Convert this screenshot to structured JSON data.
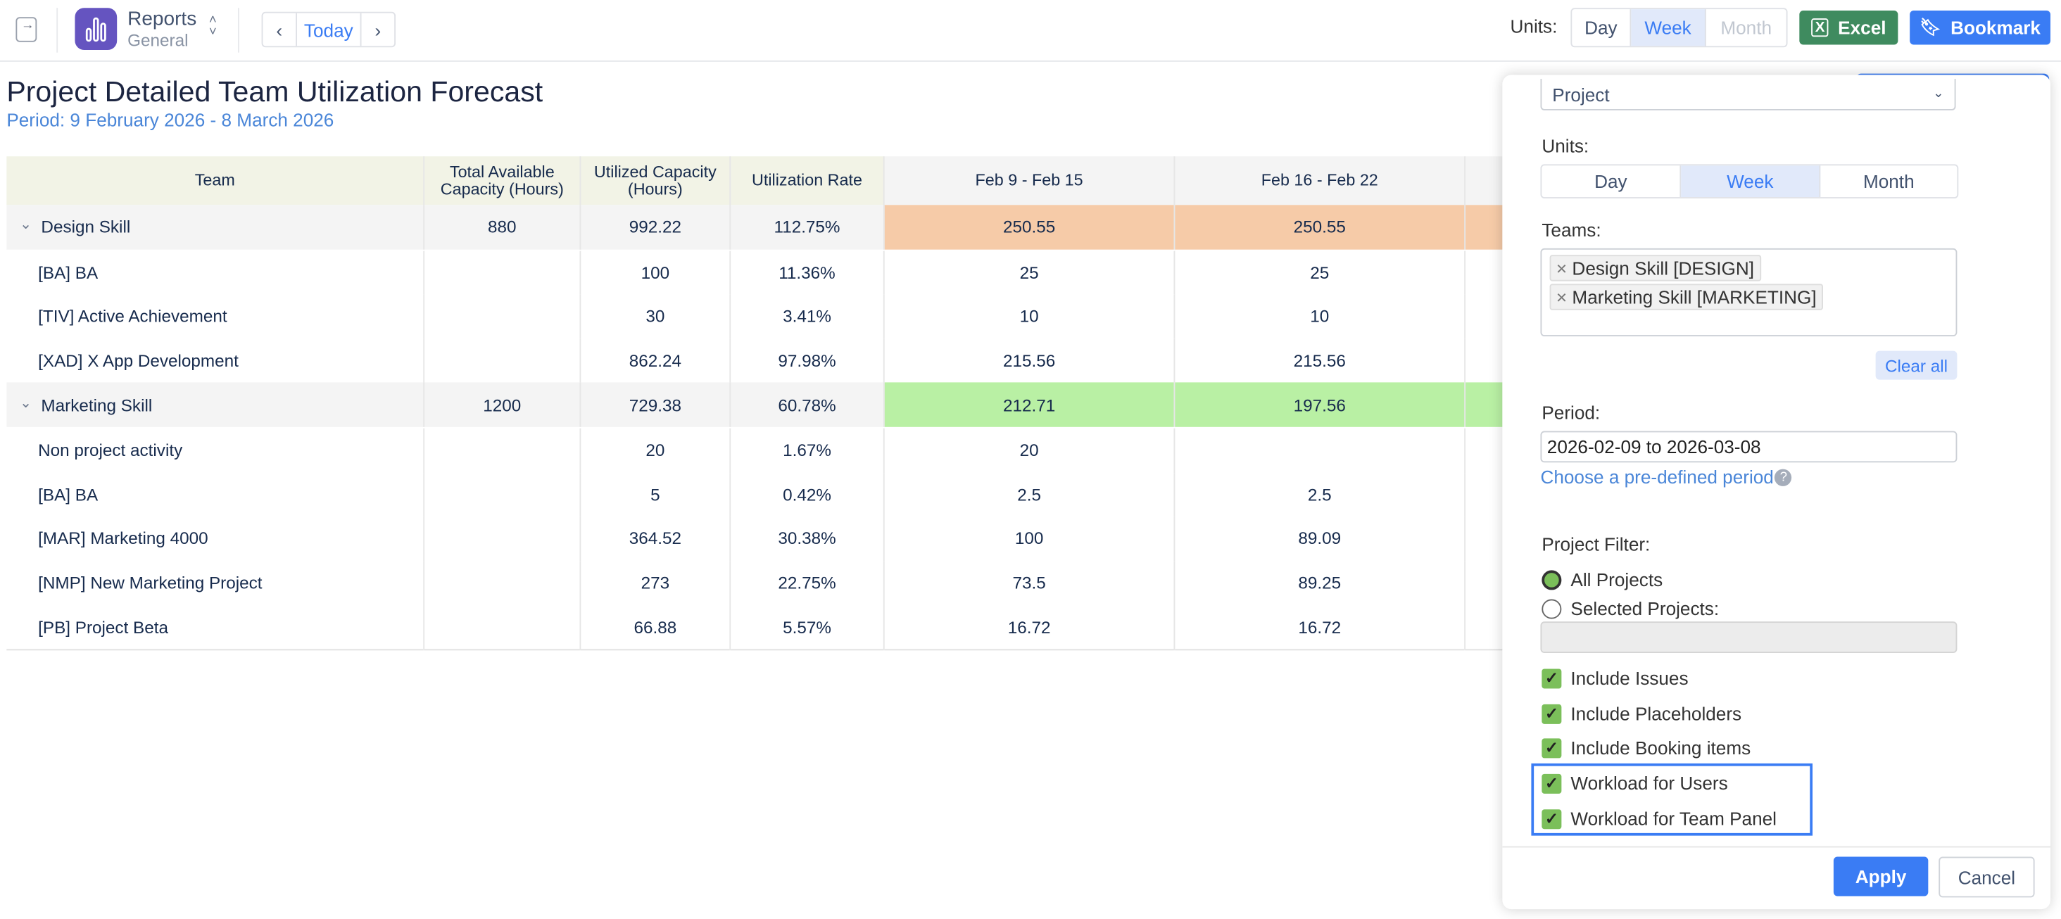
{
  "topbar": {
    "app_name": "Reports",
    "app_sub": "General",
    "today_label": "Today",
    "units_label": "Units:",
    "units": [
      "Day",
      "Week",
      "Month"
    ],
    "units_selected": "Week",
    "excel_label": "Excel",
    "bookmark_label": "Bookmark"
  },
  "report": {
    "title": "Project Detailed Team Utilization Forecast",
    "period": "Period: 9 February 2026 - 8 March 2026"
  },
  "table": {
    "headers": [
      "Team",
      "Total Available Capacity (Hours)",
      "Utilized Capacity (Hours)",
      "Utilization Rate",
      "Feb 9 - Feb 15",
      "Feb 16 - Feb 22"
    ],
    "rows": [
      {
        "group": true,
        "team": "Design Skill",
        "total": "880",
        "utilized": "992.22",
        "rate": "112.75%",
        "w1": "250.55",
        "w2": "250.55",
        "status": "over"
      },
      {
        "group": false,
        "team": "[BA] BA",
        "total": "",
        "utilized": "100",
        "rate": "11.36%",
        "w1": "25",
        "w2": "25"
      },
      {
        "group": false,
        "team": "[TIV] Active Achievement",
        "total": "",
        "utilized": "30",
        "rate": "3.41%",
        "w1": "10",
        "w2": "10"
      },
      {
        "group": false,
        "team": "[XAD] X App Development",
        "total": "",
        "utilized": "862.24",
        "rate": "97.98%",
        "w1": "215.56",
        "w2": "215.56"
      },
      {
        "group": true,
        "team": "Marketing Skill",
        "total": "1200",
        "utilized": "729.38",
        "rate": "60.78%",
        "w1": "212.71",
        "w2": "197.56",
        "status": "under"
      },
      {
        "group": false,
        "team": "Non project activity",
        "total": "",
        "utilized": "20",
        "rate": "1.67%",
        "w1": "20",
        "w2": ""
      },
      {
        "group": false,
        "team": "[BA] BA",
        "total": "",
        "utilized": "5",
        "rate": "0.42%",
        "w1": "2.5",
        "w2": "2.5"
      },
      {
        "group": false,
        "team": "[MAR] Marketing 4000",
        "total": "",
        "utilized": "364.52",
        "rate": "30.38%",
        "w1": "100",
        "w2": "89.09"
      },
      {
        "group": false,
        "team": "[NMP] New Marketing Project",
        "total": "",
        "utilized": "273",
        "rate": "22.75%",
        "w1": "73.5",
        "w2": "89.25"
      },
      {
        "group": false,
        "team": "[PB] Project Beta",
        "total": "",
        "utilized": "66.88",
        "rate": "5.57%",
        "w1": "16.72",
        "w2": "16.72"
      }
    ]
  },
  "panel": {
    "group_by_value": "Project",
    "units_label": "Units:",
    "units": [
      "Day",
      "Week",
      "Month"
    ],
    "units_selected": "Week",
    "teams_label": "Teams:",
    "teams": [
      "Design Skill [DESIGN]",
      "Marketing Skill [MARKETING]"
    ],
    "clear_all": "Clear all",
    "period_label": "Period:",
    "period_value": "2026-02-09 to 2026-03-08",
    "predefined_link": "Choose a pre-defined period",
    "project_filter_label": "Project Filter:",
    "radio_all": "All Projects",
    "radio_selected": "Selected Projects:",
    "checkboxes": [
      "Include Issues",
      "Include Placeholders",
      "Include Booking items",
      "Workload for Users",
      "Workload for Team Panel"
    ],
    "apply": "Apply",
    "cancel": "Cancel"
  },
  "colors": {
    "over": "#f6cba8",
    "under": "#b9f0a4",
    "accent": "#3a7cf4",
    "excel": "#3f8b5f",
    "logo": "#6554c0"
  }
}
